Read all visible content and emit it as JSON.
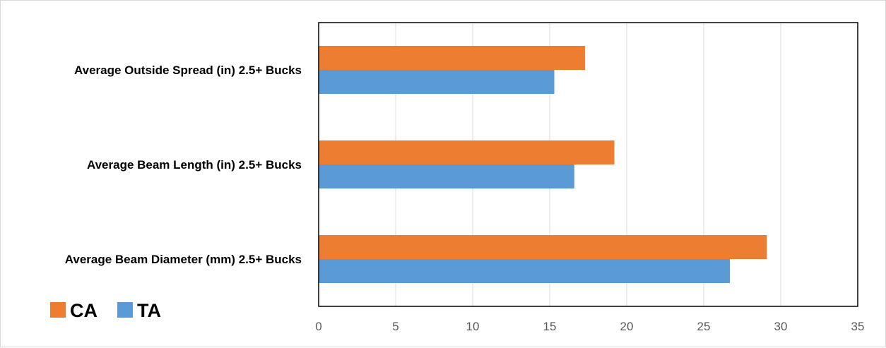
{
  "chart_data": {
    "type": "bar",
    "orientation": "horizontal",
    "categories": [
      "Average Outside Spread (in) 2.5+ Bucks",
      "Average Beam Length (in) 2.5+ Bucks",
      "Average Beam Diameter (mm) 2.5+ Bucks"
    ],
    "series": [
      {
        "name": "CA",
        "color": "#ED7D31",
        "values": [
          17.3,
          19.2,
          29.1
        ]
      },
      {
        "name": "TA",
        "color": "#5B9BD5",
        "values": [
          15.3,
          16.6,
          26.7
        ]
      }
    ],
    "xlim": [
      0,
      35
    ],
    "xticks": [
      0,
      5,
      10,
      15,
      20,
      25,
      30,
      35
    ],
    "grid": true,
    "legend_position": "bottom-left",
    "title": "",
    "xlabel": "",
    "ylabel": ""
  }
}
